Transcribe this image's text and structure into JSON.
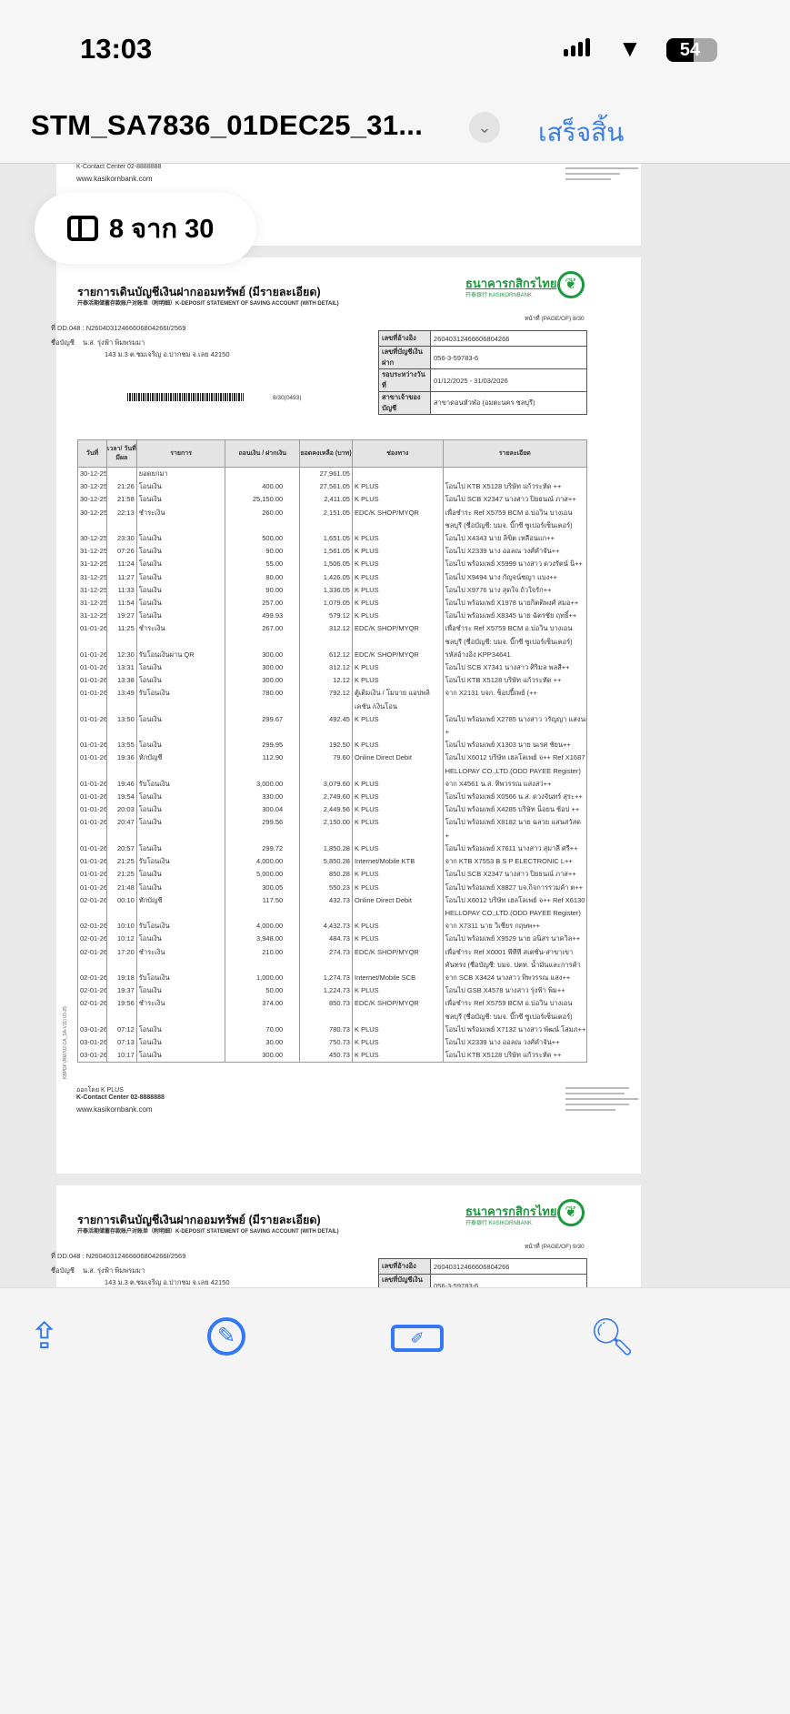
{
  "status_bar": {
    "time": "13:03",
    "battery": "54"
  },
  "header": {
    "title": "STM_SA7836_01DEC25_31...",
    "done_label": "เสร็จสิ้น"
  },
  "page_indicator": "8 จาก 30",
  "prev_page_footer": {
    "contact": "K-Contact Center 02-8888888",
    "website": "www.kasikornbank.com"
  },
  "statement": {
    "title": "รายการเดินบัญชีเงินฝากออมทรัพย์ (มีรายละเอียด)",
    "subtitle": "开泰活期储蓄存款账户对账单（附明细）K-DEPOSIT STATEMENT OF SAVING ACCOUNT (WITH DETAIL)",
    "bank_name": "ธนาคารกสิกรไทย",
    "bank_sub": "开泰银行 KASIKORNBANK",
    "page_label": "หน้าที่ (PAGE/OF) 8/30",
    "ref_no": "ที่ DD.048 : N26040312466606804266I/2569",
    "account_name_label": "ชื่อบัญชี",
    "account_name": "น.ส. รุ่งฟ้า พิมพรมมา",
    "address": "143 ม.3 ต.ชมเจริญ อ.ปากชม จ.เลย 42150",
    "barcode_code": "8/30(0493)",
    "side_code": "KBPDF (RM702-CA_SA-V11) 03-25",
    "info": [
      {
        "k": "เลขที่อ้างอิง",
        "v": "26040312466606804266"
      },
      {
        "k": "เลขที่บัญชีเงินฝาก",
        "v": "056-3-59783-6"
      },
      {
        "k": "รอบระหว่างวันที่",
        "v": "01/12/2025 - 31/03/2026"
      },
      {
        "k": "สาขาเจ้าของบัญชี",
        "v": "สาขาดอนหัวฬอ (อมตะนคร ชลบุรี)"
      }
    ],
    "columns": [
      "วันที่",
      "เวลา/ วันที่มีผล",
      "รายการ",
      "ถอนเงิน / ฝากเงิน",
      "ยอดคงเหลือ (บาท)",
      "ช่องทาง",
      "รายละเอียด"
    ],
    "rows": [
      [
        "30-12-25",
        "",
        "ยอดยกมา",
        "",
        "27,961.05",
        "",
        ""
      ],
      [
        "30-12-25",
        "21:26",
        "โอนเงิน",
        "400.00",
        "27,561.05",
        "K PLUS",
        "โอนไป KTB X5128 บริษัท แก้วระหัด ++"
      ],
      [
        "30-12-25",
        "21:58",
        "โอนเงิน",
        "25,150.00",
        "2,411.05",
        "K PLUS",
        "โอนไป SCB X2347 นางสาว ปิยธนณ์ ภาส++"
      ],
      [
        "30-12-25",
        "22:13",
        "ชำระเงิน",
        "260.00",
        "2,151.05",
        "EDC/K SHOP/MYQR",
        "เพื่อชำระ Ref X5759 BCM อ.บ่อวิน บางเอน",
        "ชลบุรี (ชื่อบัญชี: บมจ. บิ๊กซี ซูเปอร์เซ็นเตอร์)"
      ],
      [
        "30-12-25",
        "23:30",
        "โอนเงิน",
        "500.00",
        "1,651.05",
        "K PLUS",
        "โอนไป X4343 นาย ลิขิต เหลือนแก++"
      ],
      [
        "31-12-25",
        "07:26",
        "โอนเงิน",
        "90.00",
        "1,561.05",
        "K PLUS",
        "โอนไป X2339 นาง ออลณ วงศ์คำจัน++"
      ],
      [
        "31-12-25",
        "11:24",
        "โอนเงิน",
        "55.00",
        "1,506.05",
        "K PLUS",
        "โอนไป พร้อมเพย์ X5999 นางสาว ดวงรัตน์ นิ++"
      ],
      [
        "31-12-25",
        "11:27",
        "โอนเงิน",
        "80.00",
        "1,426.05",
        "K PLUS",
        "โอนไป X9494 นาง กัญจน์ชญา แบง++"
      ],
      [
        "31-12-25",
        "11:33",
        "โอนเงิน",
        "90.00",
        "1,336.05",
        "K PLUS",
        "โอนไป X9776 นาง สุดใจ ถ้วใจรัก++"
      ],
      [
        "31-12-25",
        "11:54",
        "โอนเงิน",
        "257.00",
        "1,079.05",
        "K PLUS",
        "โอนไป พร้อมเพย์ X1978 นายกิตติพงศ์ สมอ++"
      ],
      [
        "31-12-25",
        "19:27",
        "โอนเงิน",
        "499.93",
        "579.12",
        "K PLUS",
        "โอนไป พร้อมเพย์ X8345 นาย ฉัตรชัย ฤทธิ์++"
      ],
      [
        "01-01-26",
        "11:25",
        "ชำระเงิน",
        "267.00",
        "312.12",
        "EDC/K SHOP/MYQR",
        "เพื่อชำระ Ref X5759 BCM อ.บ่อวิน บางเอน",
        "ชลบุรี (ชื่อบัญชี: บมจ. บิ๊กซี ซูเปอร์เซ็นเตอร์)"
      ],
      [
        "01-01-26",
        "12:30",
        "รับโอนเงินผ่าน QR",
        "300.00",
        "612.12",
        "EDC/K SHOP/MYQR",
        "รหัสอ้างอิง KPP34641"
      ],
      [
        "01-01-26",
        "13:31",
        "โอนเงิน",
        "300.00",
        "312.12",
        "K PLUS",
        "โอนไป SCB X7341 นางสาว ศิริมล พลสี++"
      ],
      [
        "01-01-26",
        "13:38",
        "โอนเงิน",
        "300.00",
        "12.12",
        "K PLUS",
        "โอนไป KTB X5128 บริษัท แก้วระหัด ++"
      ],
      [
        "01-01-26",
        "13:49",
        "รับโอนเงิน",
        "780.00",
        "792.12",
        "ตู้เติมเงิน / โมบาย แอปพลิ",
        "จาก X2131 บจก. ช็อปปี้เพย์ (++",
        "",
        "เคชัน /เงินโอน"
      ],
      [
        "01-01-26",
        "13:50",
        "โอนเงิน",
        "299.67",
        "492.45",
        "K PLUS",
        "โอนไป พร้อมเพย์ X2785 นางสาว วรัญญา แสงนะ",
        "+"
      ],
      [
        "01-01-26",
        "13:55",
        "โอนเงิน",
        "299.95",
        "192.50",
        "K PLUS",
        "โอนไป พร้อมเพย์ X1303 นาย นเรศ ชัยน++"
      ],
      [
        "01-01-26",
        "19:36",
        "หักบัญชี",
        "112.90",
        "79.60",
        "Online Direct Debit",
        "โอนไป X6012 บริษัท เฮลโลเพย์ จ++ Ref X1687",
        "HELLOPAY CO.,LTD.(ODD PAYEE Register)"
      ],
      [
        "01-01-26",
        "19:46",
        "รับโอนเงิน",
        "3,000.00",
        "3,079.60",
        "K PLUS",
        "จาก X4561 น.ส. ทิพวรรณ แสงสว่++"
      ],
      [
        "01-01-26",
        "19:54",
        "โอนเงิน",
        "330.00",
        "2,749.60",
        "K PLUS",
        "โอนไป พร้อมเพย์ X0566 น.ส. ดวงจันทร์ สุระ++"
      ],
      [
        "01-01-26",
        "20:03",
        "โอนเงิน",
        "300.04",
        "2,449.56",
        "K PLUS",
        "โอนไป พร้อมเพย์ X4285 บริษัท น็อยน ช้อป ++"
      ],
      [
        "01-01-26",
        "20:47",
        "โอนเงิน",
        "299.56",
        "2,150.00",
        "K PLUS",
        "โอนไป พร้อมเพย์ X8182 นาย ฉลวย แสนสวัสด",
        "+"
      ],
      [
        "01-01-26",
        "20:57",
        "โอนเงิน",
        "299.72",
        "1,850.28",
        "K PLUS",
        "โอนไป พร้อมเพย์ X7611 นางสาว สุมาลี ศรี++"
      ],
      [
        "01-01-26",
        "21:25",
        "รับโอนเงิน",
        "4,000.00",
        "5,850.28",
        "Internet/Mobile KTB",
        "จาก KTB X7553 B S P ELECTRONIC L++"
      ],
      [
        "01-01-26",
        "21:25",
        "โอนเงิน",
        "5,000.00",
        "850.28",
        "K PLUS",
        "โอนไป SCB X2347 นางสาว ปิยธนณ์ ภาส++"
      ],
      [
        "01-01-26",
        "21:48",
        "โอนเงิน",
        "300.05",
        "550.23",
        "K PLUS",
        "โอนไป พร้อมเพย์ X8827 บจ.กิจการรวมค้า ต++"
      ],
      [
        "02-01-26",
        "00:10",
        "หักบัญชี",
        "117.50",
        "432.73",
        "Online Direct Debit",
        "โอนไป X6012 บริษัท เฮลโลเพย์ จ++ Ref X6130",
        "HELLOPAY CO.,LTD.(ODD PAYEE Register)"
      ],
      [
        "02-01-26",
        "10:10",
        "รับโอนเงิน",
        "4,000.00",
        "4,432.73",
        "K PLUS",
        "จาก X7311 นาย วิเชียร กฤษพ++"
      ],
      [
        "02-01-26",
        "10:12",
        "โอนเงิน",
        "3,948.00",
        "484.73",
        "K PLUS",
        "โอนไป พร้อมเพย์ X9529 นาย อนิสร นาควิล++"
      ],
      [
        "02-01-26",
        "17:20",
        "ชำระเงิน",
        "210.00",
        "274.73",
        "EDC/K SHOP/MYQR",
        "เพื่อชำระ Ref X0001 พีทีที สเตชั่น-สาขาเขา",
        "คันทรง (ชื่อบัญชี: บมจ. ปตท. น้ำมันและการค้า"
      ],
      [
        "02-01-26",
        "19:18",
        "รับโอนเงิน",
        "1,000.00",
        "1,274.73",
        "Internet/Mobile SCB",
        "จาก SCB X3424 นางสาว ทิพวรรณ แสง++"
      ],
      [
        "02-01-26",
        "19:37",
        "โอนเงิน",
        "50.00",
        "1,224.73",
        "K PLUS",
        "โอนไป GSB X4578 นางสาว รุ่งฟ้า พิม++"
      ],
      [
        "02-01-26",
        "19:56",
        "ชำระเงิน",
        "374.00",
        "850.73",
        "EDC/K SHOP/MYQR",
        "เพื่อชำระ Ref X5759 BCM อ.บ่อวิน บางเอน",
        "ชลบุรี (ชื่อบัญชี: บมจ. บิ๊กซี ซูเปอร์เซ็นเตอร์)"
      ],
      [
        "03-01-26",
        "07:12",
        "โอนเงิน",
        "70.00",
        "780.73",
        "K PLUS",
        "โอนไป พร้อมเพย์ X7132 นางสาว พัฒน์ โสมภ++"
      ],
      [
        "03-01-26",
        "07:13",
        "โอนเงิน",
        "30.00",
        "750.73",
        "K PLUS",
        "โอนไป X2339 นาง ออลณ วงศ์คำจัน++"
      ],
      [
        "03-01-26",
        "10:17",
        "โอนเงิน",
        "300.00",
        "450.73",
        "K PLUS",
        "โอนไป KTB X5128 บริษัท แก้วระหัด ++"
      ]
    ],
    "footer": {
      "issued_by": "ออกโดย K PLUS",
      "contact": "K-Contact Center 02-8888888",
      "website": "www.kasikornbank.com"
    }
  },
  "next_page": {
    "page_label": "หน้าที่ (PAGE/OF) 9/30"
  },
  "toolbar": {
    "share": "share-icon",
    "markup": "markup-icon",
    "signature": "signature-icon",
    "search": "search-icon"
  },
  "colors": {
    "accent": "#3478f6",
    "bank_green": "#1a9a3c"
  }
}
